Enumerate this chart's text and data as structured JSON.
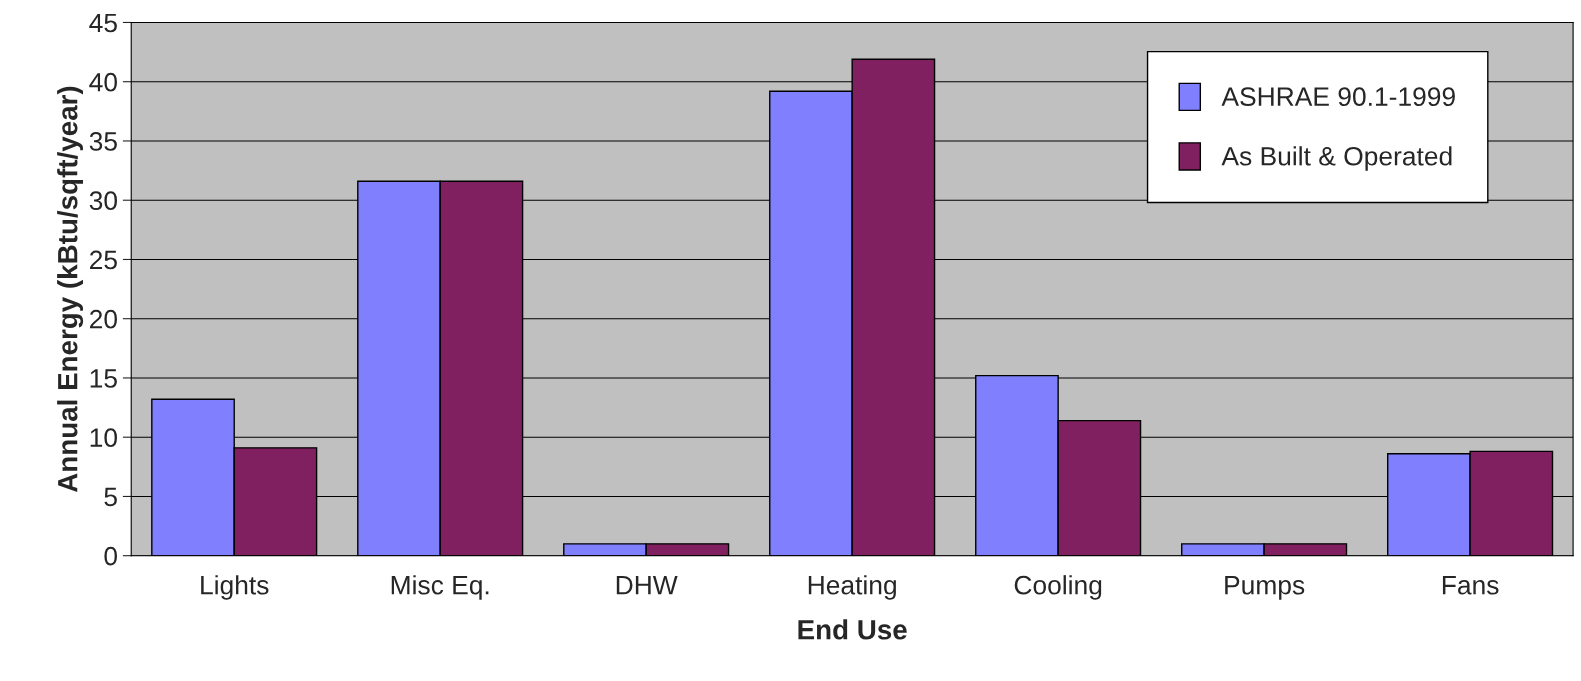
{
  "chart_data": {
    "type": "bar",
    "xlabel": "End Use",
    "ylabel": "Annual Energy (kBtu/sqft/year)",
    "categories": [
      "Lights",
      "Misc Eq.",
      "DHW",
      "Heating",
      "Cooling",
      "Pumps",
      "Fans"
    ],
    "series": [
      {
        "name": "ASHRAE 90.1-1999",
        "color": "#8080ff",
        "values": [
          13.2,
          31.6,
          1.0,
          39.2,
          15.2,
          1.0,
          8.6
        ]
      },
      {
        "name": "As Built & Operated",
        "color": "#802060",
        "values": [
          9.1,
          31.6,
          1.0,
          41.9,
          11.4,
          1.0,
          8.8
        ]
      }
    ],
    "ylim": [
      0,
      45
    ],
    "yticks": [
      0,
      5,
      10,
      15,
      20,
      25,
      30,
      35,
      40,
      45
    ],
    "grid": "y",
    "legend": "top right"
  }
}
